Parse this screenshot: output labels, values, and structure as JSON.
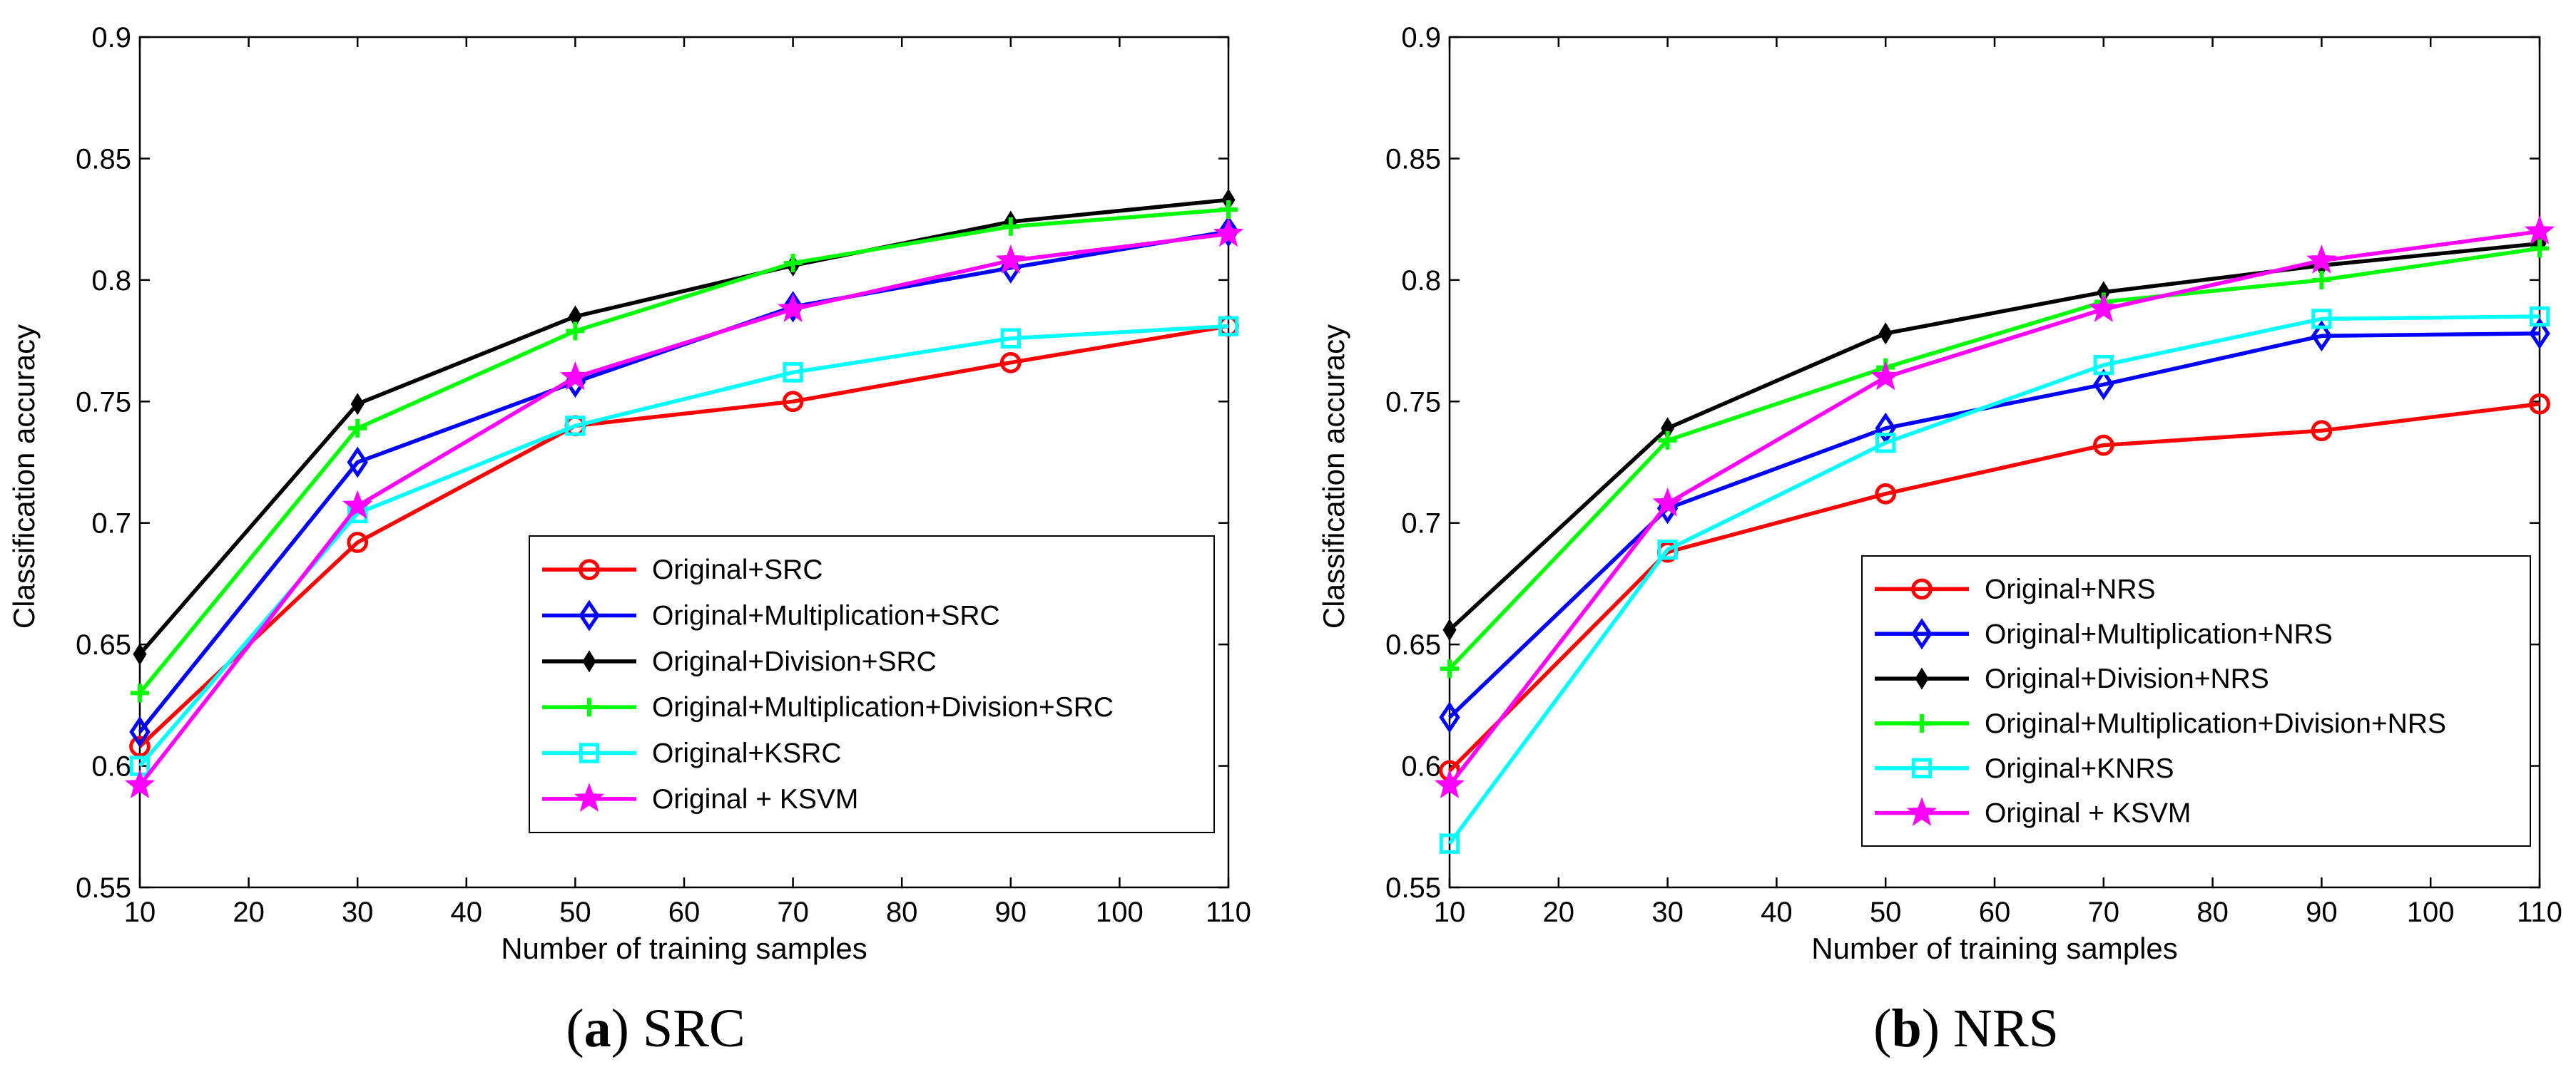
{
  "chart_data": [
    {
      "id": "a",
      "type": "line",
      "caption_letter": "a",
      "caption_text": "SRC",
      "xlabel": "Number of training samples",
      "ylabel": "Classification accuracy",
      "x": [
        10,
        30,
        50,
        70,
        90,
        110
      ],
      "xlim": [
        10,
        110
      ],
      "ylim": [
        0.55,
        0.9
      ],
      "xticks": [
        "10",
        "20",
        "30",
        "40",
        "50",
        "60",
        "70",
        "80",
        "90",
        "100",
        "110"
      ],
      "yticks": [
        "0.55",
        "0.6",
        "0.65",
        "0.7",
        "0.75",
        "0.8",
        "0.85",
        "0.9"
      ],
      "legend_position": "bottom-right",
      "series": [
        {
          "name": "Original+SRC",
          "color": "#ff0000",
          "marker": "circle",
          "values": [
            0.608,
            0.692,
            0.74,
            0.75,
            0.766,
            0.781
          ]
        },
        {
          "name": "Original+Multiplication+SRC",
          "color": "#0000ff",
          "marker": "diamond",
          "values": [
            0.614,
            0.725,
            0.758,
            0.789,
            0.805,
            0.82
          ]
        },
        {
          "name": "Original+Division+SRC",
          "color": "#000000",
          "marker": "diamond-filled",
          "values": [
            0.646,
            0.749,
            0.785,
            0.806,
            0.824,
            0.833
          ]
        },
        {
          "name": "Original+Multiplication+Division+SRC",
          "color": "#00ff00",
          "marker": "plus",
          "values": [
            0.63,
            0.739,
            0.779,
            0.807,
            0.822,
            0.829
          ]
        },
        {
          "name": "Original+KSRC",
          "color": "#00ffff",
          "marker": "square",
          "values": [
            0.6,
            0.704,
            0.74,
            0.762,
            0.776,
            0.781
          ]
        },
        {
          "name": "Original + KSVM",
          "color": "#ff00ff",
          "marker": "star",
          "values": [
            0.592,
            0.707,
            0.76,
            0.788,
            0.808,
            0.819
          ]
        }
      ]
    },
    {
      "id": "b",
      "type": "line",
      "caption_letter": "b",
      "caption_text": "NRS",
      "xlabel": "Number of training samples",
      "ylabel": "Classification accuracy",
      "x": [
        10,
        30,
        50,
        70,
        90,
        110
      ],
      "xlim": [
        10,
        110
      ],
      "ylim": [
        0.55,
        0.9
      ],
      "xticks": [
        "10",
        "20",
        "30",
        "40",
        "50",
        "60",
        "70",
        "80",
        "90",
        "100",
        "110"
      ],
      "yticks": [
        "0.55",
        "0.6",
        "0.65",
        "0.7",
        "0.75",
        "0.8",
        "0.85",
        "0.9"
      ],
      "legend_position": "bottom-right",
      "series": [
        {
          "name": "Original+NRS",
          "color": "#ff0000",
          "marker": "circle",
          "values": [
            0.598,
            0.688,
            0.712,
            0.732,
            0.738,
            0.749
          ]
        },
        {
          "name": "Original+Multiplication+NRS",
          "color": "#0000ff",
          "marker": "diamond",
          "values": [
            0.62,
            0.706,
            0.739,
            0.757,
            0.777,
            0.778
          ]
        },
        {
          "name": "Original+Division+NRS",
          "color": "#000000",
          "marker": "diamond-filled",
          "values": [
            0.656,
            0.739,
            0.778,
            0.795,
            0.806,
            0.815
          ]
        },
        {
          "name": "Original+Multiplication+Division+NRS",
          "color": "#00ff00",
          "marker": "plus",
          "values": [
            0.64,
            0.734,
            0.764,
            0.791,
            0.8,
            0.813
          ]
        },
        {
          "name": "Original+KNRS",
          "color": "#00ffff",
          "marker": "square",
          "values": [
            0.568,
            0.689,
            0.733,
            0.765,
            0.784,
            0.785
          ]
        },
        {
          "name": "Original + KSVM",
          "color": "#ff00ff",
          "marker": "star",
          "values": [
            0.592,
            0.708,
            0.76,
            0.788,
            0.808,
            0.82
          ]
        }
      ]
    }
  ]
}
